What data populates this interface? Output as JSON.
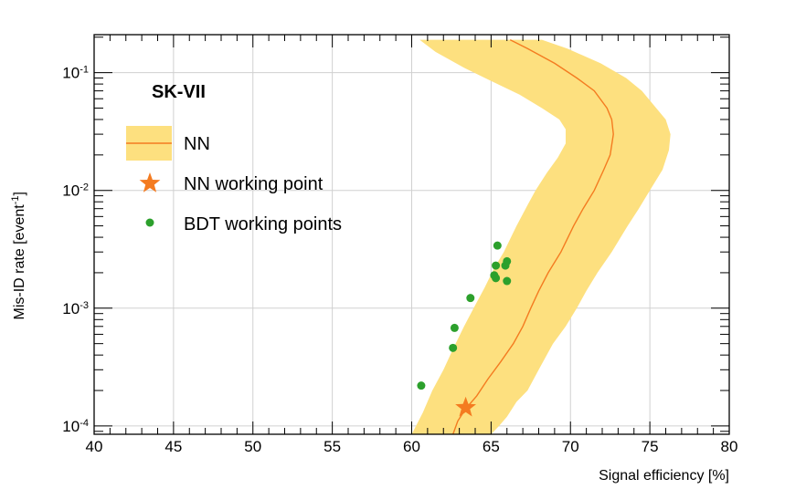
{
  "chart_data": {
    "type": "line",
    "experiment_label": "SK-VII",
    "xlabel": "Signal efficiency [%]",
    "ylabel": "Mis-ID rate [event",
    "ylabel_exponent": "-1",
    "ylabel_close": "]",
    "xlim": [
      40,
      80
    ],
    "ylim": [
      8.5e-05,
      0.21
    ],
    "yscale": "log",
    "grid": true,
    "legend_position": "top-left",
    "x_ticks": [
      40,
      45,
      50,
      55,
      60,
      65,
      70,
      75,
      80
    ],
    "y_ticks": [
      {
        "value": 0.1,
        "base": "10",
        "exp": "-1"
      },
      {
        "value": 0.01,
        "base": "10",
        "exp": "-2"
      },
      {
        "value": 0.001,
        "base": "10",
        "exp": "-3"
      },
      {
        "value": 0.0001,
        "base": "10",
        "exp": "-4"
      }
    ],
    "series": [
      {
        "name": "NN",
        "kind": "line_with_band",
        "color": "#f47b20",
        "band_color": "#fde07f",
        "line": [
          [
            62.6,
            8.5e-05
          ],
          [
            62.9,
            0.00011
          ],
          [
            63.4,
            0.00014
          ],
          [
            64.1,
            0.00018
          ],
          [
            64.8,
            0.00025
          ],
          [
            65.6,
            0.00035
          ],
          [
            66.4,
            0.0005
          ],
          [
            67.0,
            0.0007
          ],
          [
            67.5,
            0.001
          ],
          [
            68.0,
            0.0014
          ],
          [
            68.6,
            0.002
          ],
          [
            69.4,
            0.003
          ],
          [
            70.2,
            0.005
          ],
          [
            70.8,
            0.007
          ],
          [
            71.5,
            0.01
          ],
          [
            72.1,
            0.015
          ],
          [
            72.5,
            0.02
          ],
          [
            72.7,
            0.03
          ],
          [
            72.6,
            0.04
          ],
          [
            72.3,
            0.05
          ],
          [
            71.5,
            0.07
          ],
          [
            70.4,
            0.09
          ],
          [
            69.0,
            0.12
          ],
          [
            67.3,
            0.16
          ],
          [
            66.2,
            0.19
          ]
        ],
        "band_lower": [
          [
            60.0,
            8.5e-05
          ],
          [
            60.7,
            0.00013
          ],
          [
            61.3,
            0.0002
          ],
          [
            62.0,
            0.0003
          ],
          [
            62.6,
            0.00045
          ],
          [
            63.3,
            0.0007
          ],
          [
            63.9,
            0.001
          ],
          [
            64.6,
            0.0015
          ],
          [
            65.2,
            0.0022
          ],
          [
            65.8,
            0.003
          ],
          [
            66.6,
            0.005
          ],
          [
            67.3,
            0.0075
          ],
          [
            67.8,
            0.01
          ],
          [
            68.5,
            0.014
          ],
          [
            69.2,
            0.019
          ],
          [
            69.7,
            0.025
          ],
          [
            69.7,
            0.033
          ],
          [
            69.3,
            0.04
          ],
          [
            68.2,
            0.05
          ],
          [
            66.8,
            0.065
          ],
          [
            65.0,
            0.085
          ],
          [
            63.3,
            0.11
          ],
          [
            61.5,
            0.15
          ],
          [
            60.5,
            0.19
          ]
        ],
        "band_upper": [
          [
            65.0,
            8.5e-05
          ],
          [
            65.5,
            0.0001
          ],
          [
            66.0,
            0.00012
          ],
          [
            66.6,
            0.00016
          ],
          [
            67.3,
            0.0002
          ],
          [
            68.0,
            0.0003
          ],
          [
            68.9,
            0.0005
          ],
          [
            69.7,
            0.0007
          ],
          [
            70.4,
            0.001
          ],
          [
            71.0,
            0.0014
          ],
          [
            71.7,
            0.002
          ],
          [
            72.6,
            0.003
          ],
          [
            73.6,
            0.005
          ],
          [
            74.3,
            0.007
          ],
          [
            75.0,
            0.01
          ],
          [
            75.8,
            0.015
          ],
          [
            76.2,
            0.022
          ],
          [
            76.3,
            0.03
          ],
          [
            76.0,
            0.04
          ],
          [
            75.4,
            0.05
          ],
          [
            74.5,
            0.07
          ],
          [
            73.5,
            0.09
          ],
          [
            71.9,
            0.12
          ],
          [
            69.8,
            0.16
          ],
          [
            68.2,
            0.19
          ]
        ]
      },
      {
        "name": "NN working point",
        "kind": "marker_star",
        "color": "#f47b20",
        "points": [
          [
            63.4,
            0.000143
          ]
        ]
      },
      {
        "name": "BDT working points",
        "kind": "scatter",
        "color": "#2ca02c",
        "points": [
          [
            60.6,
            0.00022
          ],
          [
            62.6,
            0.00046
          ],
          [
            62.7,
            0.00068
          ],
          [
            63.7,
            0.00122
          ],
          [
            65.2,
            0.0019
          ],
          [
            65.3,
            0.0018
          ],
          [
            65.3,
            0.0023
          ],
          [
            65.4,
            0.0034
          ],
          [
            65.9,
            0.0023
          ],
          [
            66.0,
            0.0025
          ],
          [
            66.0,
            0.0017
          ]
        ]
      }
    ]
  }
}
